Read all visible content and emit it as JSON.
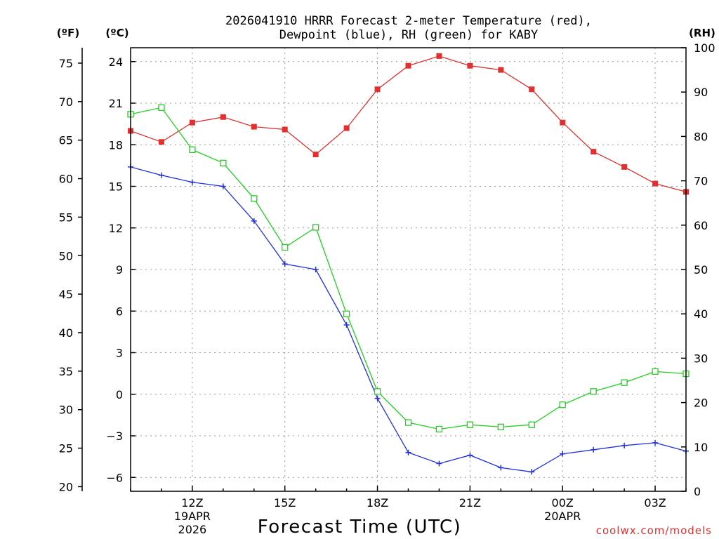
{
  "chart_data": {
    "type": "line",
    "title_line1": "2026041910 HRRR Forecast 2-meter Temperature (red),",
    "title_line2": "Dewpoint (blue), RH (green) for KABY",
    "units": {
      "fahrenheit": "(ºF)",
      "celsius": "(ºC)",
      "rh": "(RH)"
    },
    "xlabel": "Forecast Time (UTC)",
    "watermark": "coolwx.com/models",
    "x_hours": [
      10,
      11,
      12,
      13,
      14,
      15,
      16,
      17,
      18,
      19,
      20,
      21,
      22,
      23,
      24,
      25,
      26,
      27,
      28
    ],
    "xlim": [
      10,
      28
    ],
    "x_ticks": [
      {
        "hour": 12,
        "label": "12Z",
        "date1": "19APR",
        "date2": "2026"
      },
      {
        "hour": 15,
        "label": "15Z"
      },
      {
        "hour": 18,
        "label": "18Z"
      },
      {
        "hour": 21,
        "label": "21Z"
      },
      {
        "hour": 24,
        "label": "00Z",
        "date1": "20APR"
      },
      {
        "hour": 27,
        "label": "03Z"
      }
    ],
    "celsius_axis": {
      "lim": [
        -7,
        25
      ],
      "ticks": [
        24,
        21,
        18,
        15,
        12,
        9,
        6,
        3,
        0,
        -3,
        -6
      ],
      "labels": [
        "24",
        "21",
        "18",
        "15",
        "12",
        "9",
        "6",
        "3",
        "0",
        "−3",
        "−6"
      ]
    },
    "fahrenheit_axis": {
      "ticks": [
        75,
        70,
        65,
        60,
        55,
        50,
        45,
        40,
        35,
        30,
        25,
        20
      ],
      "labels": [
        "75",
        "70",
        "65",
        "60",
        "55",
        "50",
        "45",
        "40",
        "35",
        "30",
        "25",
        "20"
      ]
    },
    "rh_axis": {
      "lim": [
        0,
        100
      ],
      "ticks": [
        100,
        90,
        80,
        70,
        60,
        50,
        40,
        30,
        20,
        10,
        0
      ],
      "labels": [
        "100",
        "90",
        "80",
        "70",
        "60",
        "50",
        "40",
        "30",
        "20",
        "10",
        "0"
      ]
    },
    "series": [
      {
        "name": "Temperature",
        "axis": "celsius",
        "color": "#e03030",
        "values": [
          19.0,
          18.2,
          19.6,
          20.0,
          19.3,
          19.1,
          17.3,
          19.2,
          22.0,
          23.7,
          24.4,
          23.7,
          23.4,
          22.0,
          19.6,
          17.5,
          16.4,
          15.2,
          14.6
        ]
      },
      {
        "name": "Dewpoint",
        "axis": "celsius",
        "color": "#2030e0",
        "values": [
          16.4,
          15.8,
          15.3,
          15.0,
          12.5,
          9.4,
          9.0,
          5.0,
          -0.3,
          -4.2,
          -5.0,
          -4.4,
          -5.3,
          -5.6,
          -4.3,
          -4.0,
          -3.7,
          -3.5,
          -4.1
        ]
      },
      {
        "name": "RH",
        "axis": "rh",
        "color": "#20d020",
        "values": [
          85,
          86.5,
          77,
          74,
          66,
          55,
          59.5,
          40,
          22.5,
          15.5,
          14,
          15,
          14.5,
          15,
          19.5,
          22.5,
          24.5,
          27,
          26.5
        ]
      }
    ]
  }
}
